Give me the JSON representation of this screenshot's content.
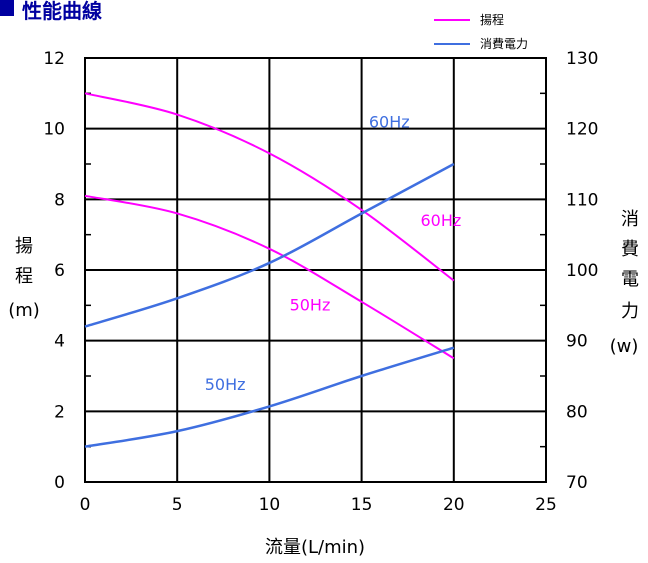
{
  "title": "性能曲線",
  "colors": {
    "head": "#ff00ff",
    "power": "#3f6fe0",
    "title": "#0000a0"
  },
  "chart_data": {
    "type": "line",
    "title": "性能曲線",
    "xlabel": "流量(L/min)",
    "ylabel_left": [
      "揚",
      "程",
      "(m)"
    ],
    "ylabel_right": [
      "消",
      "費",
      "電",
      "力",
      "(w)"
    ],
    "xlim": [
      0,
      25
    ],
    "ylim_left": [
      0,
      12
    ],
    "ylim_right": [
      70,
      130
    ],
    "x_ticks": [
      "0",
      "5",
      "10",
      "15",
      "20",
      "25"
    ],
    "y_left_ticks": [
      "0",
      "2",
      "4",
      "6",
      "8",
      "10",
      "12"
    ],
    "y_right_ticks": [
      "70",
      "80",
      "90",
      "100",
      "110",
      "120",
      "130"
    ],
    "grid": true,
    "legend_position": "top-right",
    "legend": [
      {
        "label": "揚程",
        "color": "#ff00ff"
      },
      {
        "label": "消費電力",
        "color": "#3f6fe0"
      }
    ],
    "series": [
      {
        "name": "60Hz",
        "kind": "揚程",
        "axis": "left",
        "color": "#ff00ff",
        "x": [
          0,
          5,
          10,
          15,
          20
        ],
        "y": [
          11.0,
          10.4,
          9.3,
          7.7,
          5.7
        ]
      },
      {
        "name": "50Hz",
        "kind": "揚程",
        "axis": "left",
        "color": "#ff00ff",
        "x": [
          0,
          5,
          10,
          15,
          20
        ],
        "y": [
          8.1,
          7.6,
          6.6,
          5.1,
          3.5
        ]
      },
      {
        "name": "60Hz",
        "kind": "消費電力",
        "axis": "right",
        "color": "#3f6fe0",
        "x": [
          0,
          5,
          10,
          15,
          20
        ],
        "y": [
          92,
          96,
          101,
          108,
          115
        ]
      },
      {
        "name": "50Hz",
        "kind": "消費電力",
        "axis": "right",
        "color": "#3f6fe0",
        "x": [
          0,
          5,
          10,
          15,
          20
        ],
        "y": [
          75,
          77.2,
          80.7,
          85,
          89
        ]
      }
    ],
    "annotations": [
      {
        "text": "60Hz",
        "color": "#3f6fe0",
        "x": 16.5,
        "y_right": 120.2
      },
      {
        "text": "60Hz",
        "color": "#ff00ff",
        "x": 19.3,
        "y_left": 7.25
      },
      {
        "text": "50Hz",
        "color": "#ff00ff",
        "x": 12.2,
        "y_left": 4.85
      },
      {
        "text": "50Hz",
        "color": "#3f6fe0",
        "x": 7.6,
        "y_right": 83
      }
    ]
  }
}
